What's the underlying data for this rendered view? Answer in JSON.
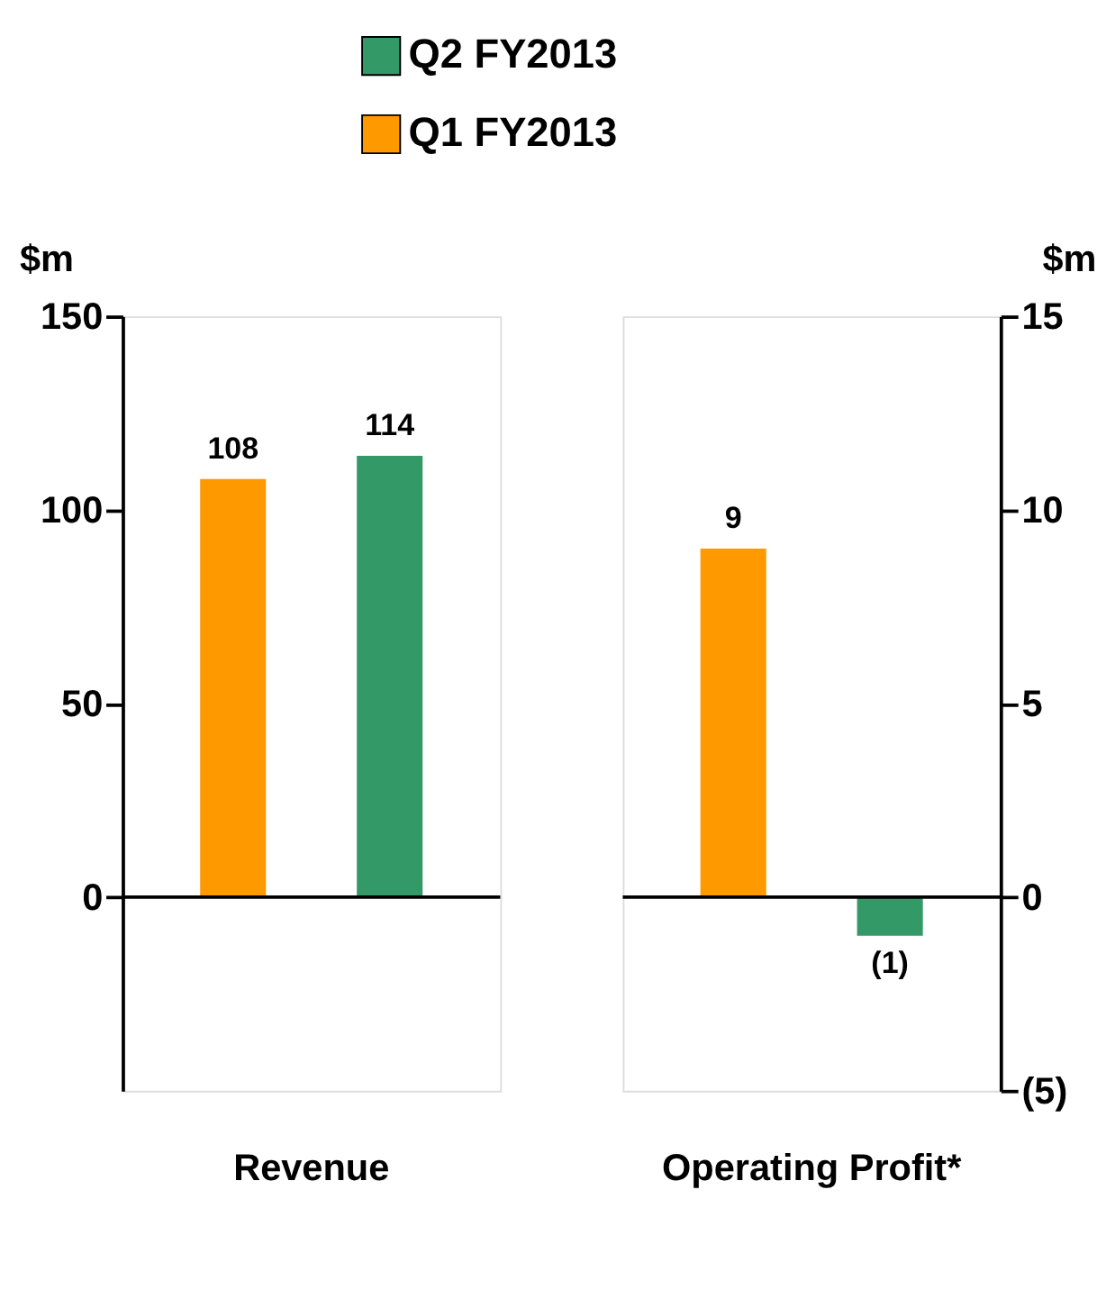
{
  "chart_data": [
    {
      "type": "bar",
      "categories": [
        "Revenue"
      ],
      "ylabel": "$m",
      "ylim": [
        -50,
        150
      ],
      "yticks": [
        0,
        50,
        100,
        150
      ],
      "legend": "top",
      "data_labels": true,
      "grid": false,
      "ref_lines": [
        {
          "axis": "y",
          "value": 0
        }
      ],
      "series": [
        {
          "name": "Q1 FY2013",
          "color": "#ff9900",
          "values": [
            108
          ]
        },
        {
          "name": "Q2 FY2013",
          "color": "#339966",
          "values": [
            114
          ]
        }
      ]
    },
    {
      "type": "bar",
      "categories": [
        "Operating Profit*"
      ],
      "y2label": "$m",
      "y2lim": [
        -5,
        15
      ],
      "y2ticks": [
        {
          "value": -5,
          "label": "(5)"
        },
        0,
        5,
        10,
        15
      ],
      "grid": false,
      "ref_lines": [
        {
          "axis": "y2",
          "value": 0
        }
      ],
      "series": [
        {
          "color": "#ff9900",
          "axis": "y2",
          "values": [
            9
          ],
          "value_labels": [
            "9"
          ]
        },
        {
          "color": "#339966",
          "axis": "y2",
          "values": [
            -1
          ],
          "value_labels": [
            "(1)"
          ]
        }
      ]
    }
  ]
}
